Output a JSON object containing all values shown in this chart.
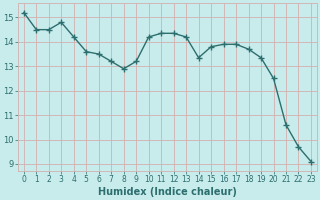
{
  "x": [
    0,
    1,
    2,
    3,
    4,
    5,
    6,
    7,
    8,
    9,
    10,
    11,
    12,
    13,
    14,
    15,
    16,
    17,
    18,
    19,
    20,
    21,
    22,
    23
  ],
  "y": [
    15.2,
    14.5,
    14.5,
    14.8,
    14.2,
    13.6,
    13.5,
    13.2,
    12.9,
    13.2,
    14.2,
    14.35,
    14.35,
    14.2,
    13.35,
    13.8,
    13.9,
    13.9,
    13.7,
    13.35,
    12.5,
    10.6,
    9.7,
    9.1
  ],
  "line_color": "#2d6e6e",
  "marker": "D",
  "marker_size": 2.2,
  "line_width": 1.0,
  "xlabel": "Humidex (Indice chaleur)",
  "xlabel_fontsize": 7,
  "background_color": "#c8ecec",
  "grid_color": "#d4b0b0",
  "tick_color": "#2d6e6e",
  "xlim": [
    -0.5,
    23.5
  ],
  "ylim": [
    8.7,
    15.6
  ],
  "yticks": [
    9,
    10,
    11,
    12,
    13,
    14,
    15
  ],
  "xticks": [
    0,
    1,
    2,
    3,
    4,
    5,
    6,
    7,
    8,
    9,
    10,
    11,
    12,
    13,
    14,
    15,
    16,
    17,
    18,
    19,
    20,
    21,
    22,
    23
  ],
  "tick_fontsize": 5.5,
  "ytick_fontsize": 6.0
}
